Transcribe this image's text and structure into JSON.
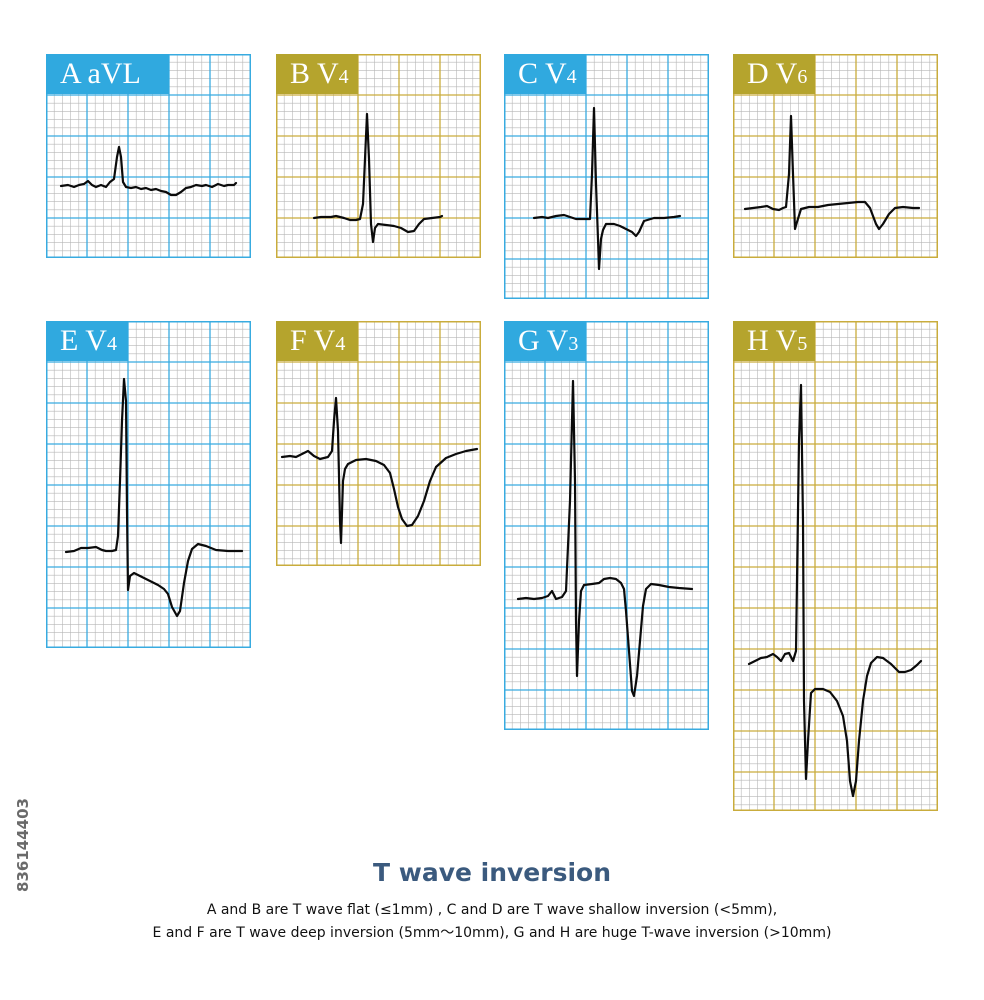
{
  "panels": [
    {
      "id": "A",
      "lead": "A",
      "name": "aVL",
      "sub": "",
      "theme": "blue"
    },
    {
      "id": "B",
      "lead": "B",
      "name": "V",
      "sub": "4",
      "theme": "gold"
    },
    {
      "id": "C",
      "lead": "C",
      "name": "V",
      "sub": "4",
      "theme": "blue"
    },
    {
      "id": "D",
      "lead": "D",
      "name": "V",
      "sub": "6",
      "theme": "gold"
    },
    {
      "id": "E",
      "lead": "E",
      "name": "V",
      "sub": "4",
      "theme": "blue"
    },
    {
      "id": "F",
      "lead": "F",
      "name": "V",
      "sub": "4",
      "theme": "gold"
    },
    {
      "id": "G",
      "lead": "G",
      "name": "V",
      "sub": "3",
      "theme": "blue"
    },
    {
      "id": "H",
      "lead": "H",
      "name": "V",
      "sub": "5",
      "theme": "gold"
    }
  ],
  "colors": {
    "blue_label": "#30a9df",
    "blue_major": "#38abe0",
    "blue_minor": "#b7b7b7",
    "gold_label": "#b5a42d",
    "gold_major": "#c9ac3c",
    "gold_minor": "#b7b7b7",
    "trace": "#0b0b0b",
    "title": "#3b5a7e"
  },
  "caption": {
    "title": "T wave inversion",
    "line1": "A and B are T wave flat (≤1mm) , C and D are T wave shallow inversion (<5mm),",
    "line2": "E and F are T wave deep inversion (5mm～10mm), G and H are huge T-wave inversion (>10mm)"
  },
  "stock_id": "836144403"
}
